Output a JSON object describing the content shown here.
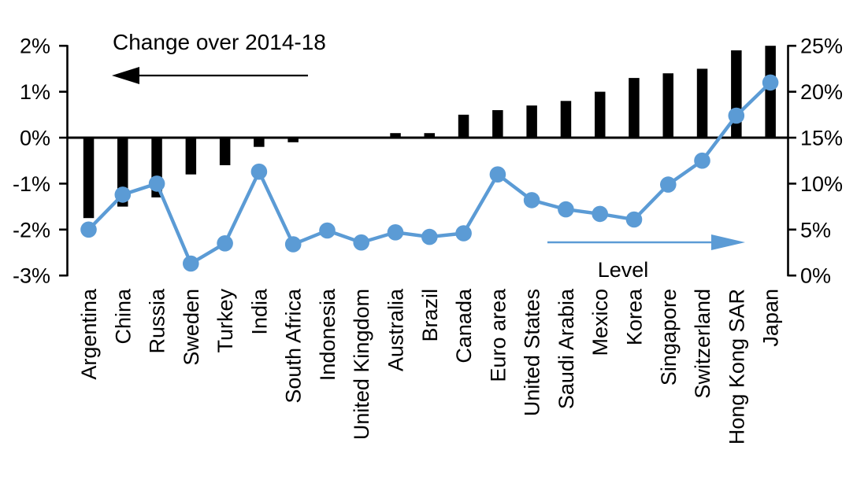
{
  "figure": {
    "background": "#ffffff",
    "colors": {
      "bar": "#000000",
      "line": "#5b9bd5",
      "axis": "#000000",
      "text": "#000000"
    },
    "annotations": {
      "change_label": "Change over 2014-18",
      "change_arrow_direction": "left",
      "level_label": "Level",
      "level_arrow_direction": "right"
    }
  },
  "chart_data": {
    "type": "bar",
    "subtype": "dual-axis combo (bars + line with markers)",
    "title": "",
    "grid": false,
    "legend_position": "none",
    "categories": [
      "Argentina",
      "China",
      "Russia",
      "Sweden",
      "Turkey",
      "India",
      "South Africa",
      "Indonesia",
      "United Kingdom",
      "Australia",
      "Brazil",
      "Canada",
      "Euro area",
      "United States",
      "Saudi Arabia",
      "Mexico",
      "Korea",
      "Singapore",
      "Switzerland",
      "Hong Kong SAR",
      "Japan"
    ],
    "series": [
      {
        "name": "Change over 2014-18",
        "mark": "bar",
        "axis": "left",
        "color": "#000000",
        "values": [
          -1.75,
          -1.5,
          -1.3,
          -0.8,
          -0.6,
          -0.2,
          -0.1,
          0.0,
          0.0,
          0.1,
          0.1,
          0.5,
          0.6,
          0.7,
          0.8,
          1.0,
          1.3,
          1.4,
          1.5,
          1.9,
          2.0
        ]
      },
      {
        "name": "Level",
        "mark": "line",
        "axis": "right",
        "color": "#5b9bd5",
        "values": [
          5.0,
          8.8,
          10.0,
          1.3,
          3.5,
          11.3,
          3.4,
          4.9,
          3.6,
          4.7,
          4.2,
          4.6,
          11.0,
          8.2,
          7.2,
          6.7,
          6.1,
          9.9,
          12.5,
          17.4,
          21.0
        ]
      }
    ],
    "left_axis": {
      "min": -3,
      "max": 2,
      "tick_values": [
        2,
        1,
        0,
        -1,
        -2,
        -3
      ],
      "tick_labels": [
        "2%",
        "1%",
        "0%",
        "-1%",
        "-2%",
        "-3%"
      ]
    },
    "right_axis": {
      "min": 0,
      "max": 25,
      "tick_values": [
        25,
        20,
        15,
        10,
        5,
        0
      ],
      "tick_labels": [
        "25%",
        "20%",
        "15%",
        "10%",
        "5%",
        "0%"
      ]
    }
  }
}
